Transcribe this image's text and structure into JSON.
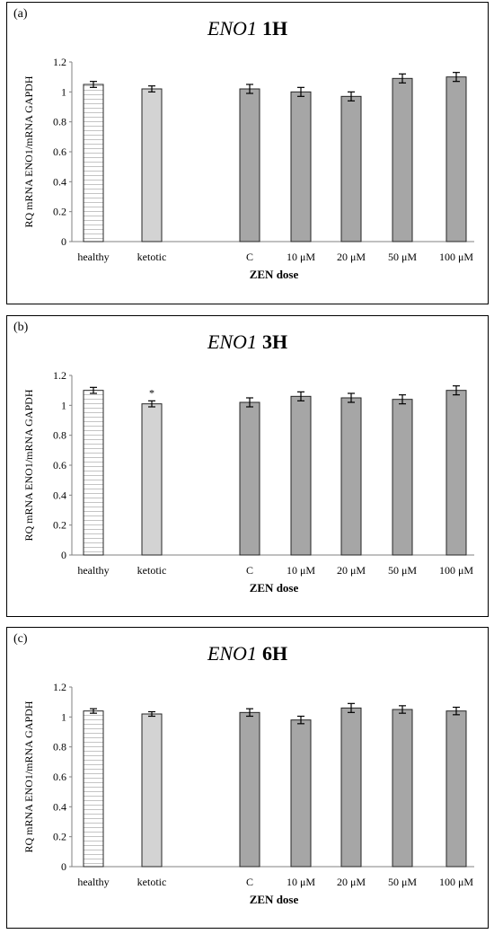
{
  "colors": {
    "healthy": "#ffffff",
    "ketotic": "#d3d3d3",
    "zen": "#a6a6a6",
    "stripe": "#b5b5b5"
  },
  "chart_data": [
    {
      "type": "bar",
      "panel_label": "(a)",
      "title_gene": "ENO1",
      "title_time": "1H",
      "ylabel": "RQ mRNA ENO1/mRNA GAPDH",
      "xlabel": "ZEN dose",
      "ylim": [
        0,
        1.2
      ],
      "yticks": [
        "0",
        "0.2",
        "0.4",
        "0.6",
        "0.8",
        "1",
        "1.2"
      ],
      "categories": [
        "healthy",
        "ketotic",
        "C",
        "10 μM",
        "20 μM",
        "50 μM",
        "100 μM"
      ],
      "values": [
        1.05,
        1.02,
        1.02,
        1.0,
        0.97,
        1.09,
        1.1
      ],
      "errors": [
        0.02,
        0.02,
        0.03,
        0.03,
        0.03,
        0.03,
        0.03
      ],
      "annotations": [
        "",
        "",
        "",
        "",
        "",
        "",
        ""
      ]
    },
    {
      "type": "bar",
      "panel_label": "(b)",
      "title_gene": "ENO1",
      "title_time": "3H",
      "ylabel": "RQ mRNA ENO1/mRNA GAPDH",
      "xlabel": "ZEN dose",
      "ylim": [
        0,
        1.2
      ],
      "yticks": [
        "0",
        "0.2",
        "0.4",
        "0.6",
        "0.8",
        "1",
        "1.2"
      ],
      "categories": [
        "healthy",
        "ketotic",
        "C",
        "10 μM",
        "20 μM",
        "50 μM",
        "100 μM"
      ],
      "values": [
        1.1,
        1.01,
        1.02,
        1.06,
        1.05,
        1.04,
        1.1
      ],
      "errors": [
        0.02,
        0.02,
        0.03,
        0.03,
        0.03,
        0.03,
        0.03
      ],
      "annotations": [
        "",
        "*",
        "",
        "",
        "",
        "",
        ""
      ]
    },
    {
      "type": "bar",
      "panel_label": "(c)",
      "title_gene": "ENO1",
      "title_time": "6H",
      "ylabel": "RQ mRNA ENO1/mRNA GAPDH",
      "xlabel": "ZEN dose",
      "ylim": [
        0,
        1.2
      ],
      "yticks": [
        "0",
        "0.2",
        "0.4",
        "0.6",
        "0.8",
        "1",
        "1.2"
      ],
      "categories": [
        "healthy",
        "ketotic",
        "C",
        "10 μM",
        "20 μM",
        "50 μM",
        "100 μM"
      ],
      "values": [
        1.04,
        1.02,
        1.03,
        0.98,
        1.06,
        1.05,
        1.04
      ],
      "errors": [
        0.015,
        0.015,
        0.025,
        0.025,
        0.03,
        0.025,
        0.025
      ],
      "annotations": [
        "",
        "",
        "",
        "",
        "",
        "",
        ""
      ]
    }
  ]
}
